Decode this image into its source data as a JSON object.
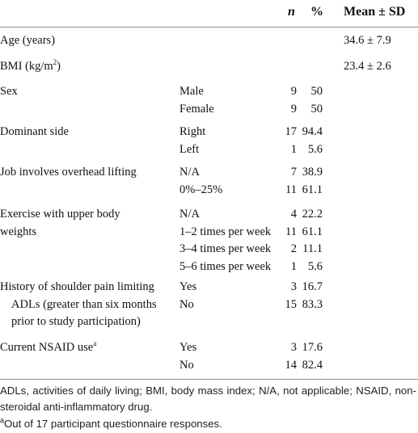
{
  "table": {
    "header": {
      "n": "n",
      "pct": "%",
      "mean": "Mean ± SD"
    },
    "sections": [
      {
        "label": [
          "Age (years)"
        ],
        "mean": "34.6 ± 7.9",
        "items": []
      },
      {
        "label": [
          "BMI (kg/m"
        ],
        "label_sup": "2",
        "label_end": ")",
        "mean": "23.4 ± 2.6",
        "items": []
      },
      {
        "label": [
          "Sex"
        ],
        "items": [
          {
            "group": "Male",
            "n": "9",
            "pct": "50"
          },
          {
            "group": "Female",
            "n": "9",
            "pct": "50"
          }
        ]
      },
      {
        "label": [
          "Dominant side"
        ],
        "items": [
          {
            "group": "Right",
            "n": "17",
            "pct": "94.4"
          },
          {
            "group": "Left",
            "n": "1",
            "pct": "5.6"
          }
        ]
      },
      {
        "label": [
          "Job involves overhead lifting"
        ],
        "items": [
          {
            "group": "N/A",
            "n": "7",
            "pct": "38.9"
          },
          {
            "group": "0%–25%",
            "n": "11",
            "pct": "61.1"
          }
        ]
      },
      {
        "label": [
          "Exercise with upper body",
          "weights"
        ],
        "items": [
          {
            "group": "N/A",
            "n": "4",
            "pct": "22.2"
          },
          {
            "group": "1–2 times per week",
            "n": "11",
            "pct": "61.1"
          },
          {
            "group": "3–4 times per week",
            "n": "2",
            "pct": "11.1"
          },
          {
            "group": "5–6 times per week",
            "n": "1",
            "pct": "5.6"
          }
        ]
      },
      {
        "label": [
          "History of shoulder pain limiting",
          "ADLs (greater than six months",
          "prior to study participation)"
        ],
        "items": [
          {
            "group": "Yes",
            "n": "3",
            "pct": "16.7"
          },
          {
            "group": "No",
            "n": "15",
            "pct": "83.3"
          }
        ]
      },
      {
        "label": [
          "Current NSAID use"
        ],
        "label_sup": "a",
        "items": [
          {
            "group": "Yes",
            "n": "3",
            "pct": "17.6"
          },
          {
            "group": "No",
            "n": "14",
            "pct": "82.4"
          }
        ]
      }
    ]
  },
  "footnotes": [
    {
      "text": "ADLs, activities of daily living; BMI, body mass index; N/A, not applicable; NSAID, non-steroidal anti-inflammatory drug."
    },
    {
      "sup": "a",
      "text": "Out of 17 participant questionnaire responses."
    }
  ]
}
